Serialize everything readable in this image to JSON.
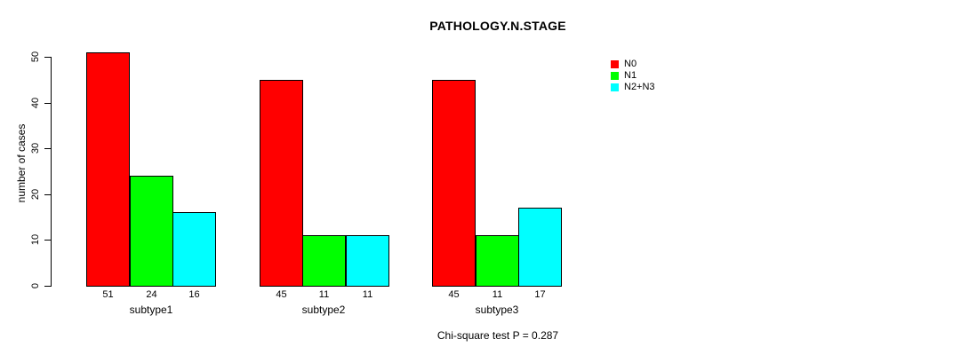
{
  "chart_data": {
    "type": "bar",
    "title": "PATHOLOGY.N.STAGE",
    "ylabel": "number of cases",
    "xlabel": "",
    "categories": [
      "subtype1",
      "subtype2",
      "subtype3"
    ],
    "series": [
      {
        "name": "N0",
        "color": "#ff0000",
        "values": [
          51,
          45,
          45
        ]
      },
      {
        "name": "N1",
        "color": "#00ff00",
        "values": [
          24,
          11,
          11
        ]
      },
      {
        "name": "N2+N3",
        "color": "#00ffff",
        "values": [
          16,
          11,
          17
        ]
      }
    ],
    "yticks": [
      0,
      10,
      20,
      30,
      40,
      50
    ],
    "ylim": [
      0,
      50
    ],
    "grid": false,
    "bar_value_labels_shown": true,
    "legend_position": "top-right-outside",
    "annotation": "Chi-square test P = 0.287",
    "colors": {
      "background": "#ffffff",
      "axis": "#000000",
      "text": "#000000"
    }
  }
}
